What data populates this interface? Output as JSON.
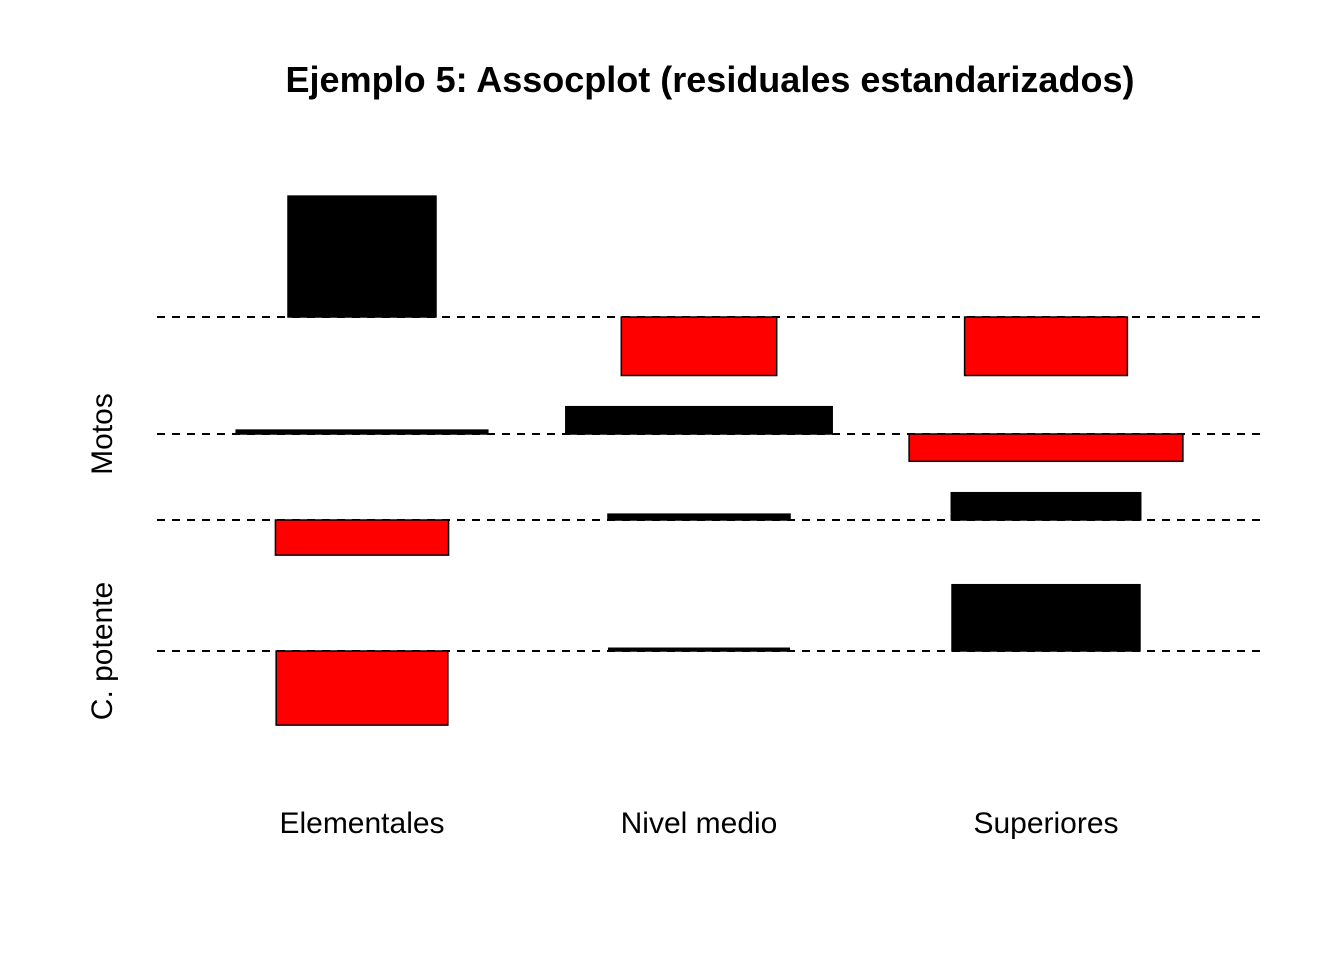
{
  "chart_data": {
    "type": "assocplot",
    "title": "Ejemplo 5: Assocplot (residuales estandarizados)",
    "columns": [
      "Elementales",
      "Nivel medio",
      "Superiores"
    ],
    "row_groups": [
      "Motos",
      "C. potente"
    ],
    "rows": [
      {
        "group": "Motos",
        "residuals": [
          3.1,
          -1.5,
          -1.5
        ],
        "expected_width": [
          1.0,
          1.05,
          1.1
        ]
      },
      {
        "group": "Motos",
        "residuals": [
          0.1,
          0.7,
          -0.7
        ],
        "expected_width": [
          1.7,
          1.8,
          1.85
        ]
      },
      {
        "group": "C. potente",
        "residuals": [
          -0.9,
          0.15,
          0.7
        ],
        "expected_width": [
          1.17,
          1.23,
          1.28
        ]
      },
      {
        "group": "C. potente",
        "residuals": [
          -1.9,
          0.07,
          1.7
        ],
        "expected_width": [
          1.16,
          1.22,
          1.27
        ]
      }
    ],
    "colors": {
      "positive": "#000000",
      "negative": "#ff0000"
    },
    "baseline_style": "dashed"
  }
}
